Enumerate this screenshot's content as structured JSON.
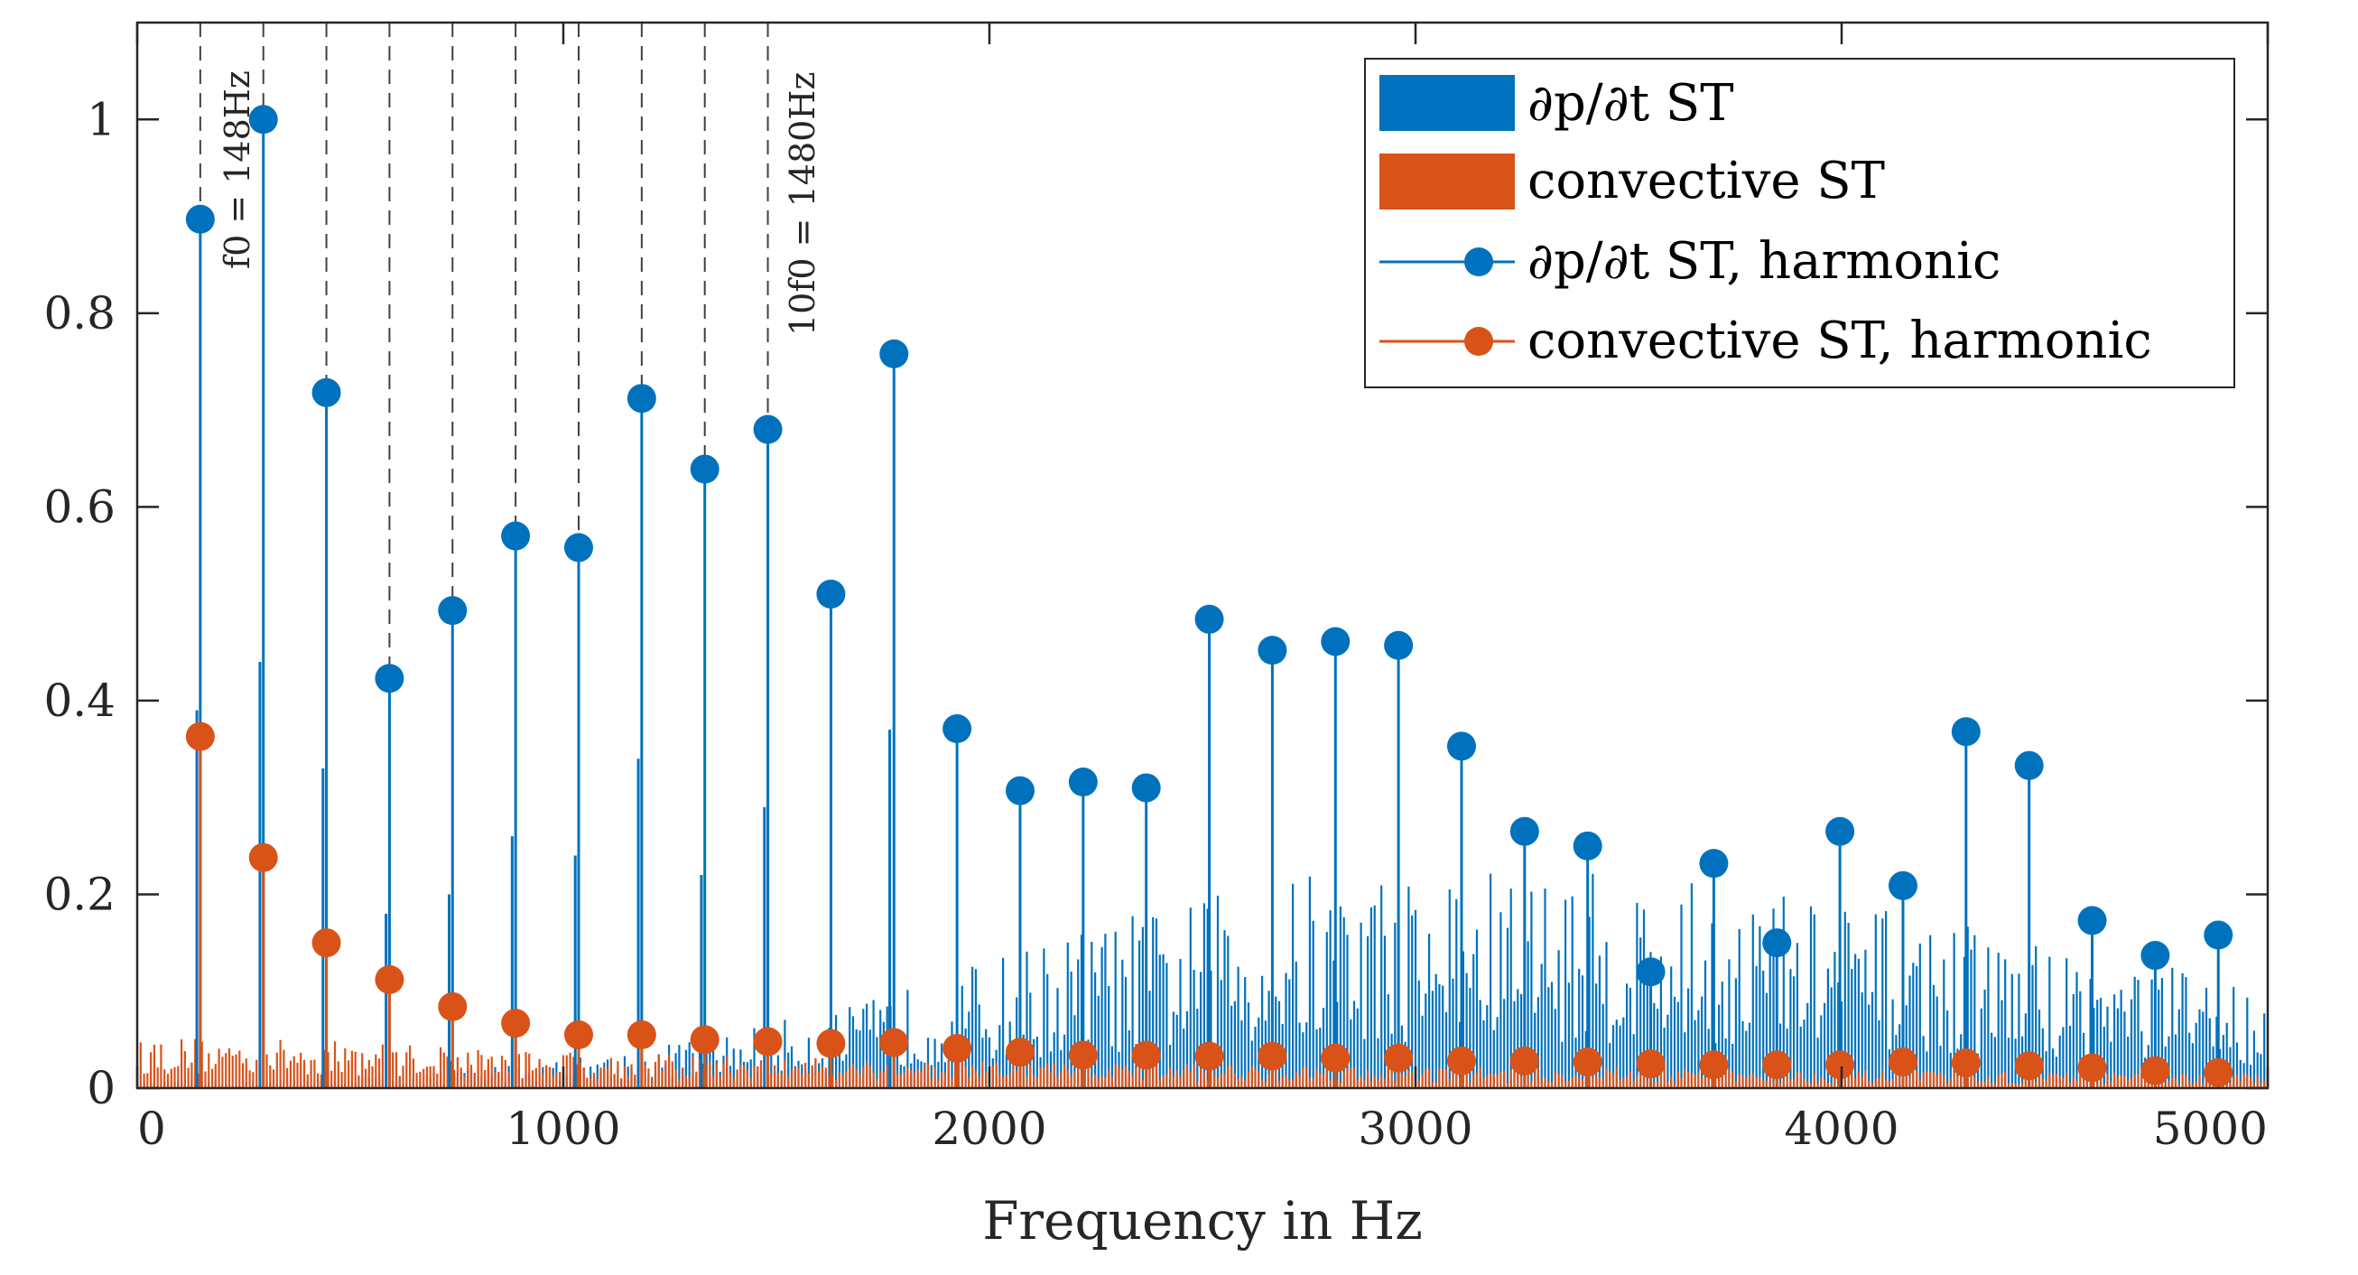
{
  "chart_data": {
    "type": "bar",
    "title": "",
    "xlabel": "Frequency in Hz",
    "ylabel": "",
    "xlim": [
      0,
      5000
    ],
    "ylim": [
      0,
      1.1
    ],
    "xticks": [
      "0",
      "1000",
      "2000",
      "3000",
      "4000",
      "5000"
    ],
    "yticks": [
      "0",
      "0.2",
      "0.4",
      "0.6",
      "0.8",
      "1"
    ],
    "colors": {
      "blue": "#0072BD",
      "orange": "#D95319"
    },
    "legend_position": "top-right",
    "legend": [
      {
        "label": "∂p/∂t ST",
        "kind": "bar",
        "color": "#0072BD"
      },
      {
        "label": "convective ST",
        "kind": "bar",
        "color": "#D95319"
      },
      {
        "label": "∂p/∂t ST, harmonic",
        "kind": "line-marker",
        "color": "#0072BD"
      },
      {
        "label": "convective ST, harmonic",
        "kind": "line-marker",
        "color": "#D95319"
      }
    ],
    "annotations": [
      {
        "text": "f0 = 148Hz",
        "x": 148
      },
      {
        "text": "10f0 = 1480Hz",
        "x": 1480
      }
    ],
    "dashed_lines_x": [
      148,
      296,
      444,
      592,
      740,
      888,
      1036,
      1184,
      1332,
      1480
    ],
    "harmonics": {
      "fundamental_hz": 148,
      "x": [
        148,
        296,
        444,
        592,
        740,
        888,
        1036,
        1184,
        1332,
        1480,
        1628,
        1776,
        1924,
        2072,
        2220,
        2368,
        2516,
        2664,
        2812,
        2960,
        3108,
        3256,
        3404,
        3552,
        3700,
        3848,
        3996,
        4144,
        4292,
        4440,
        4588,
        4736,
        4884
      ],
      "series": [
        {
          "name": "∂p/∂t ST, harmonic",
          "values": [
            0.897,
            1.0,
            0.718,
            0.423,
            0.493,
            0.57,
            0.558,
            0.712,
            0.639,
            0.68,
            0.51,
            0.758,
            0.371,
            0.307,
            0.316,
            0.31,
            0.484,
            0.452,
            0.461,
            0.457,
            0.353,
            0.265,
            0.25,
            0.12,
            0.232,
            0.15,
            0.265,
            0.209,
            0.368,
            0.333,
            0.173,
            0.137,
            0.158
          ]
        },
        {
          "name": "convective ST, harmonic",
          "values": [
            0.363,
            0.238,
            0.15,
            0.112,
            0.084,
            0.067,
            0.055,
            0.055,
            0.05,
            0.048,
            0.046,
            0.047,
            0.041,
            0.037,
            0.034,
            0.034,
            0.033,
            0.033,
            0.031,
            0.031,
            0.028,
            0.028,
            0.027,
            0.025,
            0.024,
            0.024,
            0.024,
            0.027,
            0.026,
            0.023,
            0.021,
            0.018,
            0.016
          ]
        }
      ]
    },
    "secondary_peaks": {
      "x": [
        140,
        288,
        436,
        584,
        732,
        880,
        1028,
        1176,
        1324,
        1472,
        1766
      ],
      "values": [
        0.39,
        0.44,
        0.33,
        0.18,
        0.2,
        0.26,
        0.24,
        0.34,
        0.22,
        0.29,
        0.37
      ]
    },
    "broadband": {
      "bin_hz": 8,
      "dpdt_base": [
        0.005,
        0.01,
        0.03,
        0.07,
        0.14,
        0.19,
        0.19,
        0.17,
        0.13,
        0.09
      ],
      "convective_base": [
        0.045,
        0.04,
        0.03,
        0.026,
        0.022,
        0.02,
        0.018,
        0.016,
        0.014,
        0.012
      ]
    }
  }
}
